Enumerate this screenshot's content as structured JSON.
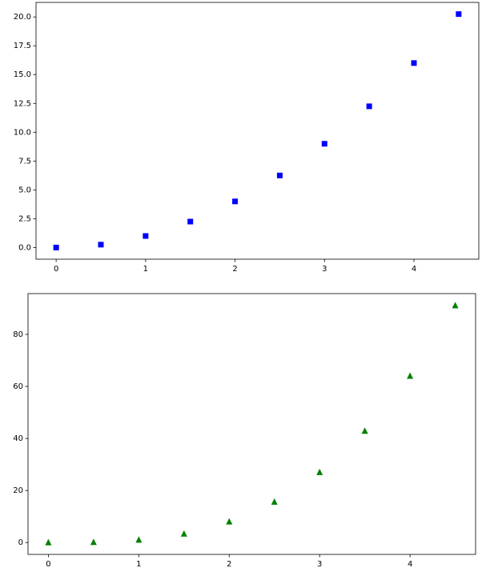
{
  "chart_data": [
    {
      "type": "scatter",
      "marker": "square",
      "color": "#0000ff",
      "x": [
        0,
        0.5,
        1,
        1.5,
        2,
        2.5,
        3,
        3.5,
        4,
        4.5
      ],
      "values": [
        0,
        0.25,
        1,
        2.25,
        4,
        6.25,
        9,
        12.25,
        16,
        20.25
      ],
      "xlim": [
        -0.225,
        4.725
      ],
      "xticks": [
        0,
        1,
        2,
        3,
        4
      ],
      "ylim": [
        -1.0125,
        21.2625
      ],
      "yticks": [
        {
          "value": 0,
          "label": "0.0"
        },
        2.5,
        {
          "value": 5,
          "label": "5.0"
        },
        7.5,
        {
          "value": 10,
          "label": "10.0"
        },
        12.5,
        {
          "value": 15,
          "label": "15.0"
        },
        17.5,
        {
          "value": 20,
          "label": "20.0"
        }
      ],
      "grid": false
    },
    {
      "type": "scatter",
      "marker": "triangle",
      "color": "#008000",
      "x": [
        0,
        0.5,
        1,
        1.5,
        2,
        2.5,
        3,
        3.5,
        4,
        4.5
      ],
      "values": [
        0,
        0.125,
        1,
        3.375,
        8,
        15.625,
        27,
        42.875,
        64,
        91.125
      ],
      "xlim": [
        -0.225,
        4.725
      ],
      "xticks": [
        0,
        1,
        2,
        3,
        4
      ],
      "ylim": [
        -4.55625,
        95.68125
      ],
      "yticks": [
        0,
        20,
        40,
        60,
        80
      ],
      "grid": false
    }
  ]
}
